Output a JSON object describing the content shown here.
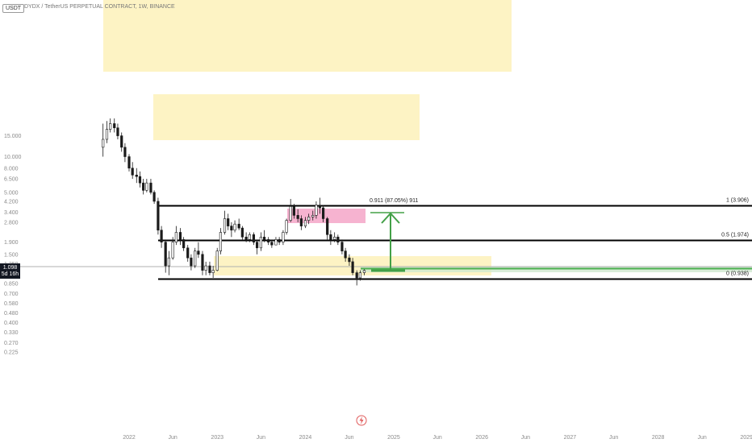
{
  "header": {
    "currency": "USDT",
    "symbol_title": "DYDX / TetherUS PERPETUAL CONTRACT, 1W, BINANCE"
  },
  "price_axis": {
    "ticks": [
      "15.000",
      "10.000",
      "8.000",
      "6.500",
      "5.000",
      "4.200",
      "3.400",
      "2.800",
      "1.900",
      "1.500",
      "1.250",
      "0.850",
      "0.700",
      "0.580",
      "0.480",
      "0.400",
      "0.330",
      "0.270",
      "0.225"
    ]
  },
  "time_axis": {
    "ticks": [
      "2022",
      "Jun",
      "2023",
      "Jun",
      "2024",
      "Jun",
      "2025",
      "Jun",
      "2026",
      "Jun",
      "2027",
      "Jun",
      "2028",
      "Jun",
      "2029"
    ]
  },
  "current_price": {
    "price": "1.098",
    "countdown": "5d 16h"
  },
  "fib_labels": {
    "top": "1 (3.906)",
    "mid": "0.5 (1.974)",
    "bottom": "0 (0.938)"
  },
  "measure_label": "0.911 (87.05%) 911",
  "colors": {
    "yellow_zone": "#fdf3c4",
    "pink_zone": "#f4a6c8",
    "green_line": "#4caf50",
    "green_arrow": "#43a047",
    "candle": "#1a1a1a",
    "level_line": "#000000",
    "current_price_line": "#b0b0b0",
    "current_price_badge": "#131722"
  },
  "icons": {
    "bottom_marker": "lightning-icon"
  },
  "chart_data": {
    "type": "candlestick",
    "title": "DYDX / TetherUS PERPETUAL CONTRACT, 1W, BINANCE",
    "y_scale": "log",
    "y_range": [
      0.225,
      17.5
    ],
    "x_range": [
      "2021-10",
      "2029-01"
    ],
    "levels": [
      {
        "name": "1",
        "value": 3.906
      },
      {
        "name": "0.5",
        "value": 1.974
      },
      {
        "name": "0",
        "value": 0.938
      }
    ],
    "series": [
      {
        "points": [
          [
            "2021-09-15",
            12.0,
            19.0,
            10.0,
            14.0
          ],
          [
            "2021-10-01",
            14.0,
            20.0,
            13.0,
            17.0
          ],
          [
            "2021-10-15",
            17.0,
            21.0,
            16.0,
            19.0
          ],
          [
            "2021-11-01",
            19.0,
            21.0,
            16.0,
            17.5
          ],
          [
            "2021-11-15",
            17.5,
            19.0,
            14.0,
            15.0
          ],
          [
            "2021-12-01",
            15.0,
            16.0,
            11.0,
            12.0
          ],
          [
            "2021-12-15",
            12.0,
            13.0,
            9.0,
            10.0
          ],
          [
            "2022-01-01",
            10.0,
            10.5,
            7.5,
            8.0
          ],
          [
            "2022-01-15",
            8.0,
            9.0,
            6.5,
            7.0
          ],
          [
            "2022-02-01",
            7.0,
            8.0,
            6.0,
            6.8
          ],
          [
            "2022-02-15",
            6.8,
            7.5,
            5.5,
            6.0
          ],
          [
            "2022-03-01",
            6.0,
            6.5,
            4.8,
            5.2
          ],
          [
            "2022-03-15",
            5.2,
            6.5,
            5.0,
            6.0
          ],
          [
            "2022-04-01",
            6.0,
            6.5,
            4.8,
            5.0
          ],
          [
            "2022-04-15",
            5.0,
            5.2,
            4.0,
            4.2
          ],
          [
            "2022-05-01",
            4.2,
            4.5,
            2.2,
            2.4
          ],
          [
            "2022-05-15",
            2.4,
            2.6,
            1.7,
            1.9
          ],
          [
            "2022-06-01",
            1.9,
            2.0,
            1.05,
            1.2
          ],
          [
            "2022-06-15",
            1.2,
            1.6,
            1.0,
            1.4
          ],
          [
            "2022-07-01",
            1.4,
            2.1,
            1.35,
            1.9
          ],
          [
            "2022-07-15",
            1.9,
            2.6,
            1.8,
            2.3
          ],
          [
            "2022-08-01",
            2.3,
            2.5,
            1.8,
            2.0
          ],
          [
            "2022-08-15",
            2.0,
            2.1,
            1.6,
            1.7
          ],
          [
            "2022-09-01",
            1.7,
            1.8,
            1.3,
            1.4
          ],
          [
            "2022-09-15",
            1.4,
            1.5,
            1.1,
            1.2
          ],
          [
            "2022-10-01",
            1.2,
            1.7,
            1.15,
            1.6
          ],
          [
            "2022-10-15",
            1.6,
            1.9,
            1.4,
            1.5
          ],
          [
            "2022-11-01",
            1.5,
            1.6,
            1.0,
            1.1
          ],
          [
            "2022-11-15",
            1.1,
            1.3,
            1.0,
            1.2
          ],
          [
            "2022-12-01",
            1.2,
            1.3,
            1.0,
            1.05
          ],
          [
            "2022-12-15",
            1.05,
            1.2,
            0.95,
            1.1
          ],
          [
            "2023-01-01",
            1.1,
            1.7,
            1.08,
            1.6
          ],
          [
            "2023-01-15",
            1.6,
            2.5,
            1.5,
            2.3
          ],
          [
            "2023-02-01",
            2.3,
            3.5,
            2.2,
            3.0
          ],
          [
            "2023-02-15",
            3.0,
            3.3,
            2.4,
            2.6
          ],
          [
            "2023-03-01",
            2.6,
            2.8,
            2.1,
            2.4
          ],
          [
            "2023-03-15",
            2.4,
            2.9,
            2.3,
            2.7
          ],
          [
            "2023-04-01",
            2.7,
            3.0,
            2.4,
            2.5
          ],
          [
            "2023-04-15",
            2.5,
            2.6,
            2.0,
            2.1
          ],
          [
            "2023-05-01",
            2.1,
            2.3,
            1.9,
            2.0
          ],
          [
            "2023-05-15",
            2.0,
            2.3,
            1.9,
            2.2
          ],
          [
            "2023-06-01",
            2.2,
            2.3,
            1.8,
            1.9
          ],
          [
            "2023-06-15",
            1.9,
            2.0,
            1.5,
            1.7
          ],
          [
            "2023-07-01",
            1.7,
            2.3,
            1.6,
            2.1
          ],
          [
            "2023-07-15",
            2.1,
            2.4,
            1.9,
            2.0
          ],
          [
            "2023-08-01",
            2.0,
            2.1,
            1.8,
            1.9
          ],
          [
            "2023-08-15",
            1.9,
            2.0,
            1.7,
            1.8
          ],
          [
            "2023-09-01",
            1.8,
            2.1,
            1.8,
            2.0
          ],
          [
            "2023-09-15",
            2.0,
            2.1,
            1.8,
            1.9
          ],
          [
            "2023-10-01",
            1.9,
            2.4,
            1.8,
            2.3
          ],
          [
            "2023-10-15",
            2.3,
            3.0,
            2.2,
            2.9
          ],
          [
            "2023-11-01",
            2.9,
            4.4,
            2.8,
            3.8
          ],
          [
            "2023-11-15",
            3.8,
            4.0,
            3.0,
            3.2
          ],
          [
            "2023-12-01",
            3.2,
            3.6,
            2.8,
            3.0
          ],
          [
            "2023-12-15",
            3.0,
            3.2,
            2.4,
            2.6
          ],
          [
            "2024-01-01",
            2.6,
            3.1,
            2.5,
            2.9
          ],
          [
            "2024-01-15",
            2.9,
            3.3,
            2.7,
            3.1
          ],
          [
            "2024-02-01",
            3.1,
            3.5,
            2.9,
            3.2
          ],
          [
            "2024-02-15",
            3.2,
            4.2,
            3.0,
            3.9
          ],
          [
            "2024-03-01",
            3.9,
            4.5,
            3.3,
            3.7
          ],
          [
            "2024-03-15",
            3.7,
            3.9,
            2.8,
            3.0
          ],
          [
            "2024-04-01",
            3.0,
            3.1,
            2.0,
            2.2
          ],
          [
            "2024-04-15",
            2.2,
            2.4,
            1.8,
            2.0
          ],
          [
            "2024-05-01",
            2.0,
            2.3,
            1.9,
            2.1
          ],
          [
            "2024-05-15",
            2.1,
            2.2,
            1.8,
            1.9
          ],
          [
            "2024-06-01",
            1.9,
            2.0,
            1.5,
            1.6
          ],
          [
            "2024-06-15",
            1.6,
            1.7,
            1.3,
            1.4
          ],
          [
            "2024-07-01",
            1.4,
            1.5,
            1.2,
            1.3
          ],
          [
            "2024-07-15",
            1.3,
            1.4,
            1.0,
            1.05
          ],
          [
            "2024-08-01",
            1.05,
            1.1,
            0.82,
            0.95
          ],
          [
            "2024-08-15",
            0.95,
            1.1,
            0.9,
            1.05
          ],
          [
            "2024-09-01",
            1.05,
            1.12,
            1.0,
            1.098
          ]
        ]
      }
    ]
  }
}
